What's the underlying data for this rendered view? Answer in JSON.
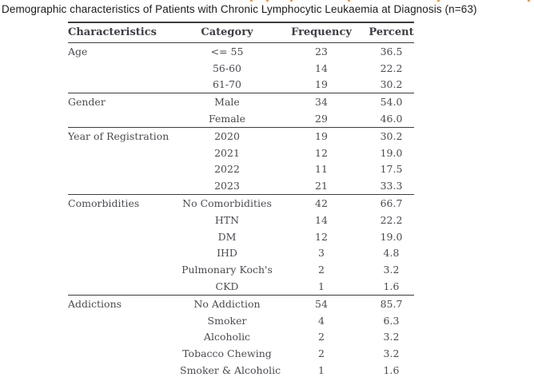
{
  "title": "Demographic characteristics of Patients with Chronic Lymphocytic Leukaemia at Diagnosis (n=63)",
  "table": {
    "columns": [
      "Characteristics",
      "Category",
      "Frequency",
      "Percent"
    ],
    "groups": [
      {
        "characteristic": "Age",
        "rows": [
          [
            "<= 55",
            "23",
            "36.5"
          ],
          [
            "56-60",
            "14",
            "22.2"
          ],
          [
            "61-70",
            "19",
            "30.2"
          ]
        ]
      },
      {
        "characteristic": "Gender",
        "rows": [
          [
            "Male",
            "34",
            "54.0"
          ],
          [
            "Female",
            "29",
            "46.0"
          ]
        ]
      },
      {
        "characteristic": "Year of Registration",
        "rows": [
          [
            "2020",
            "19",
            "30.2"
          ],
          [
            "2021",
            "12",
            "19.0"
          ],
          [
            "2022",
            "11",
            "17.5"
          ],
          [
            "2023",
            "21",
            "33.3"
          ]
        ]
      },
      {
        "characteristic": "Comorbidities",
        "rows": [
          [
            "No Comorbidities",
            "42",
            "66.7"
          ],
          [
            "HTN",
            "14",
            "22.2"
          ],
          [
            "DM",
            "12",
            "19.0"
          ],
          [
            "IHD",
            "3",
            "4.8"
          ],
          [
            "Pulmonary Koch's",
            "2",
            "3.2"
          ],
          [
            "CKD",
            "1",
            "1.6"
          ]
        ]
      },
      {
        "characteristic": "Addictions",
        "rows": [
          [
            "No Addiction",
            "54",
            "85.7"
          ],
          [
            "Smoker",
            "4",
            "6.3"
          ],
          [
            "Alcoholic",
            "2",
            "3.2"
          ],
          [
            "Tobacco Chewing",
            "2",
            "3.2"
          ],
          [
            "Smoker & Alcoholic",
            "1",
            "1.6"
          ]
        ]
      }
    ]
  },
  "colors": {
    "table_text": "#4b4b52",
    "rule": "#3c3c3c",
    "caption_text": "#1b1b1b",
    "artifact_orange": "#f09a4a"
  }
}
